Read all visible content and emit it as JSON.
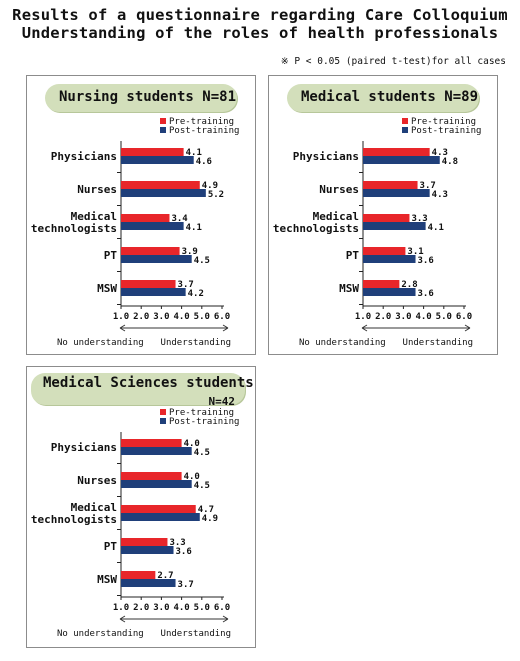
{
  "title_line1": "Results of a questionnaire regarding Care Colloquium",
  "title_line2": "Understanding of the roles of health professionals",
  "note": "※ P < 0.05 (paired t-test)for all cases",
  "colors": {
    "pre": "#e8262a",
    "post": "#1f3f7a",
    "pill": "#d3dfbb"
  },
  "legend": {
    "pre": "Pre-training",
    "post": "Post-training"
  },
  "axis_note": {
    "left": "No understanding",
    "right": "Understanding"
  },
  "chart_data": [
    {
      "type": "bar",
      "title": "Nursing students  N=81",
      "categories": [
        "Physicians",
        "Nurses",
        "Medical technologists",
        "PT",
        "MSW"
      ],
      "series": [
        {
          "name": "Pre-training",
          "values": [
            4.1,
            4.9,
            3.4,
            3.9,
            3.7
          ]
        },
        {
          "name": "Post-training",
          "values": [
            4.6,
            5.2,
            4.1,
            4.5,
            4.2
          ]
        }
      ],
      "xlim": [
        1.0,
        6.0
      ],
      "ticks": [
        "1.0",
        "2.0",
        "3.0",
        "4.0",
        "5.0",
        "6.0"
      ]
    },
    {
      "type": "bar",
      "title": "Medical students  N=89",
      "categories": [
        "Physicians",
        "Nurses",
        "Medical technologists",
        "PT",
        "MSW"
      ],
      "series": [
        {
          "name": "Pre-training",
          "values": [
            4.3,
            3.7,
            3.3,
            3.1,
            2.8
          ]
        },
        {
          "name": "Post-training",
          "values": [
            4.8,
            4.3,
            4.1,
            3.6,
            3.6
          ]
        }
      ],
      "xlim": [
        1.0,
        6.0
      ],
      "ticks": [
        "1.0",
        "2.0",
        "3.0",
        "4.0",
        "5.0",
        "6.0"
      ]
    },
    {
      "type": "bar",
      "title": "Medical Sciences students",
      "subtitle": "N=42",
      "categories": [
        "Physicians",
        "Nurses",
        "Medical technologists",
        "PT",
        "MSW"
      ],
      "series": [
        {
          "name": "Pre-training",
          "values": [
            4.0,
            4.0,
            4.7,
            3.3,
            2.7
          ]
        },
        {
          "name": "Post-training",
          "values": [
            4.5,
            4.5,
            4.9,
            3.6,
            3.7
          ]
        }
      ],
      "xlim": [
        1.0,
        6.0
      ],
      "ticks": [
        "1.0",
        "2.0",
        "3.0",
        "4.0",
        "5.0",
        "6.0"
      ]
    }
  ]
}
